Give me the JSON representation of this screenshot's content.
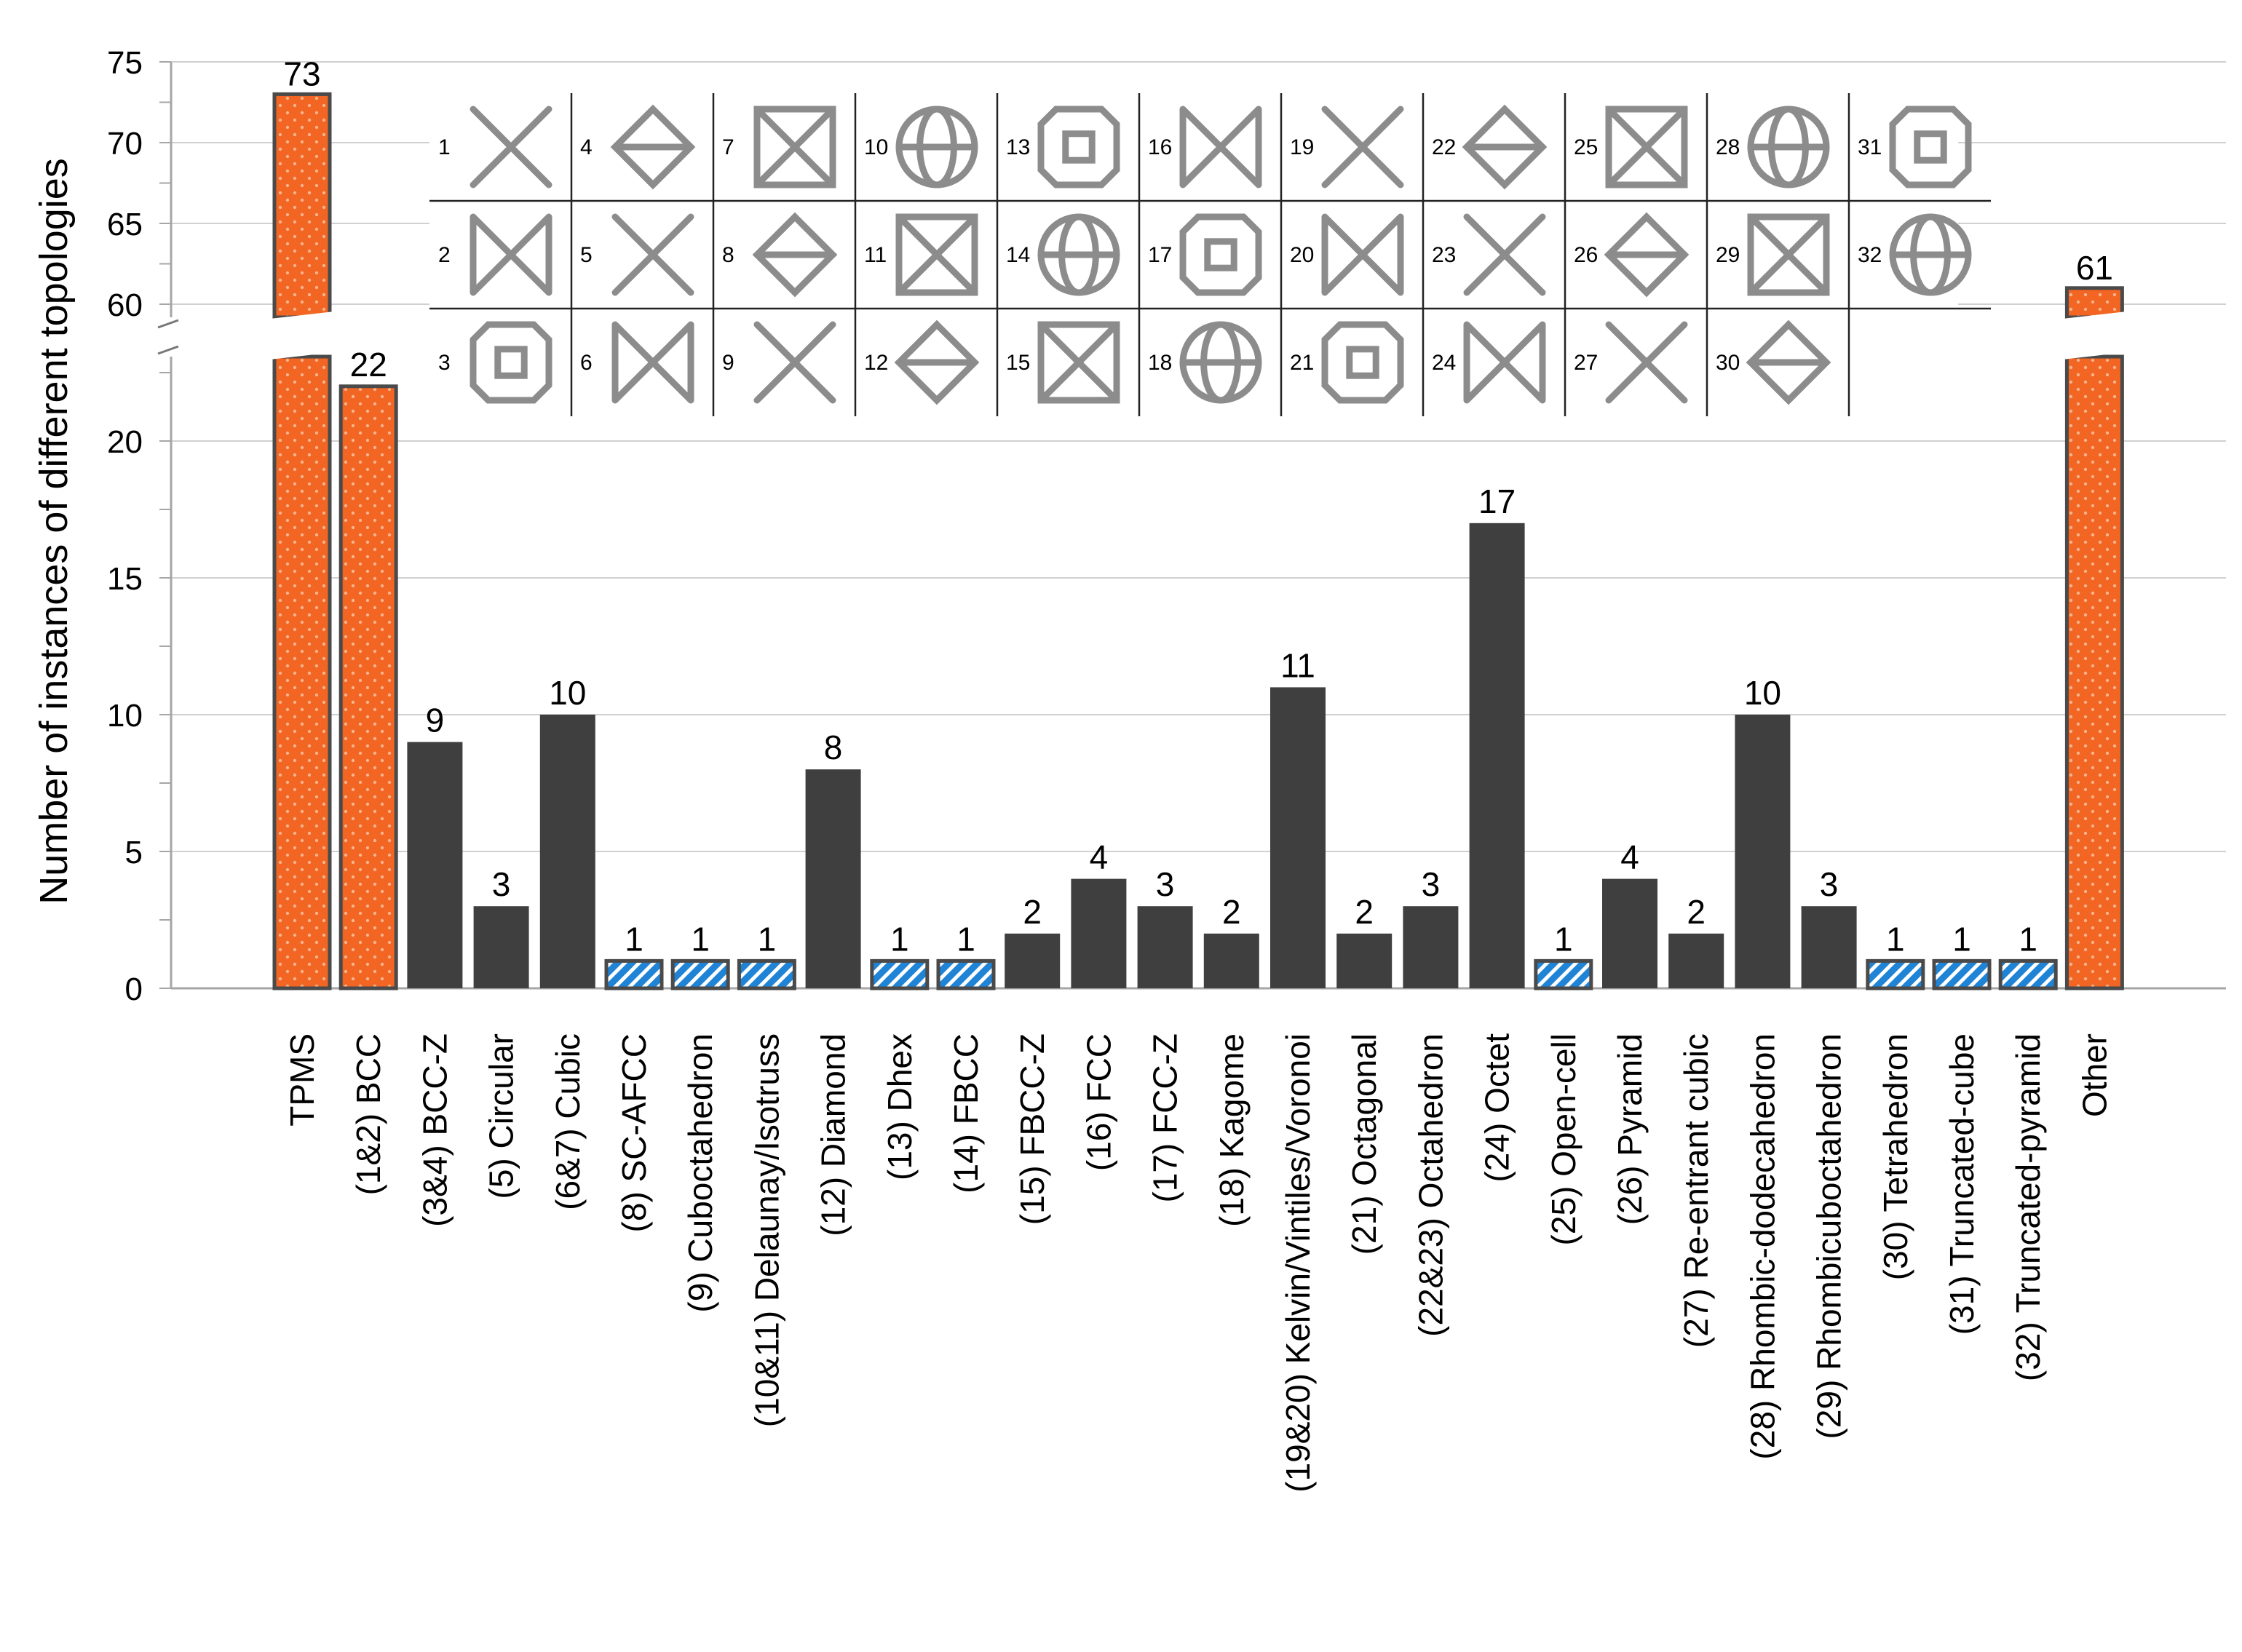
{
  "chart_data": {
    "type": "bar",
    "ylabel": "Number of instances of different topologies",
    "xlabel": "",
    "y_axis": {
      "lower_segment": {
        "range": [
          0,
          23
        ],
        "ticks": [
          0,
          5,
          10,
          15,
          20
        ]
      },
      "upper_segment": {
        "range": [
          59,
          75
        ],
        "ticks": [
          60,
          65,
          70,
          75
        ]
      },
      "broken": true
    },
    "grid": true,
    "categories": [
      "TPMS",
      "(1&2) BCC",
      "(3&4) BCC-Z",
      "(5) Circular",
      "(6&7) Cubic",
      "(8) SC-AFCC",
      "(9) Cuboctahedron",
      "(10&11) Delaunay/Isotruss",
      "(12) Diamond",
      "(13) Dhex",
      "(14) FBCC",
      "(15) FBCC-Z",
      "(16) FCC",
      "(17) FCC-Z",
      "(18) Kagome",
      "(19&20) Kelvin/Vintiles/Voronoi",
      "(21) Octagonal",
      "(22&23) Octahedron",
      "(24) Octet",
      "(25) Open-cell",
      "(26) Pyramid",
      "(27) Re-entrant cubic",
      "(28) Rhombic-dodecahedron",
      "(29) Rhombicuboctahedron",
      "(30) Tetrahedron",
      "(31) Truncated-cube",
      "(32) Truncated-pyramid",
      "Other"
    ],
    "values": [
      73,
      22,
      9,
      3,
      10,
      1,
      1,
      1,
      8,
      1,
      1,
      2,
      4,
      3,
      2,
      11,
      2,
      3,
      17,
      1,
      4,
      2,
      10,
      3,
      1,
      1,
      1,
      61
    ],
    "value_labels": [
      "73",
      "22",
      "9",
      "3",
      "10",
      "1",
      "1",
      "1",
      "8",
      "1",
      "1",
      "2",
      "4",
      "3",
      "2",
      "11",
      "2",
      "3",
      "17",
      "1",
      "4",
      "2",
      "10",
      "3",
      "1",
      "1",
      "1",
      "61"
    ],
    "styles": [
      "orange",
      "orange",
      "dark",
      "dark",
      "dark",
      "blue",
      "blue",
      "blue",
      "dark",
      "blue",
      "blue",
      "dark",
      "dark",
      "dark",
      "dark",
      "dark",
      "dark",
      "dark",
      "dark",
      "blue",
      "dark",
      "dark",
      "dark",
      "dark",
      "blue",
      "blue",
      "blue",
      "orange"
    ],
    "style_colors": {
      "orange": "#F26522",
      "orange_dots": "#F9B48E",
      "dark": "#3F3F3F",
      "blue": "#1F83D6",
      "blue_stripe": "#FFFFFF",
      "outline": "#4A4A4A",
      "grid": "#D0D0D0",
      "axis": "#A6A6A6"
    },
    "inset": {
      "description_icons": "lattice unit-cell thumbnails",
      "cells": [
        {
          "num": "1",
          "icon": "bcc-cell-icon"
        },
        {
          "num": "4",
          "icon": "bccz-cell-icon"
        },
        {
          "num": "7",
          "icon": "cross-cell-icon"
        },
        {
          "num": "10",
          "icon": "delaunay-cell-icon"
        },
        {
          "num": "13",
          "icon": "dhex-cell-icon"
        },
        {
          "num": "16",
          "icon": "fcc-cell-icon"
        },
        {
          "num": "19",
          "icon": "kelvin-cell-icon"
        },
        {
          "num": "22",
          "icon": "octahedron-cell-icon"
        },
        {
          "num": "25",
          "icon": "open-cell-icon"
        },
        {
          "num": "28",
          "icon": "rhombic-dodecahedron-cell-icon"
        },
        {
          "num": "31",
          "icon": "truncated-cube-cell-icon"
        },
        {
          "num": "2",
          "icon": "bcc-cell-icon"
        },
        {
          "num": "5",
          "icon": "circular-cell-icon"
        },
        {
          "num": "8",
          "icon": "sc-afcc-cell-icon"
        },
        {
          "num": "11",
          "icon": "isotruss-cell-icon"
        },
        {
          "num": "14",
          "icon": "fbcc-cell-icon"
        },
        {
          "num": "17",
          "icon": "fccz-cell-icon"
        },
        {
          "num": "20",
          "icon": "voronoi-cell-icon"
        },
        {
          "num": "23",
          "icon": "octahedron-cell-icon"
        },
        {
          "num": "26",
          "icon": "pyramid-cell-icon"
        },
        {
          "num": "29",
          "icon": "rhombicuboctahedron-cell-icon"
        },
        {
          "num": "32",
          "icon": "truncated-pyramid-cell-icon"
        },
        {
          "num": "3",
          "icon": "bccz-cell-icon"
        },
        {
          "num": "6",
          "icon": "cubic-cell-icon"
        },
        {
          "num": "9",
          "icon": "cuboctahedron-cell-icon"
        },
        {
          "num": "12",
          "icon": "diamond-cell-icon"
        },
        {
          "num": "15",
          "icon": "fbccz-cell-icon"
        },
        {
          "num": "18",
          "icon": "kagome-cell-icon"
        },
        {
          "num": "21",
          "icon": "octagonal-cell-icon"
        },
        {
          "num": "24",
          "icon": "octet-cell-icon"
        },
        {
          "num": "27",
          "icon": "reentrant-cell-icon"
        },
        {
          "num": "30",
          "icon": "tetrahedron-cell-icon"
        }
      ]
    }
  }
}
